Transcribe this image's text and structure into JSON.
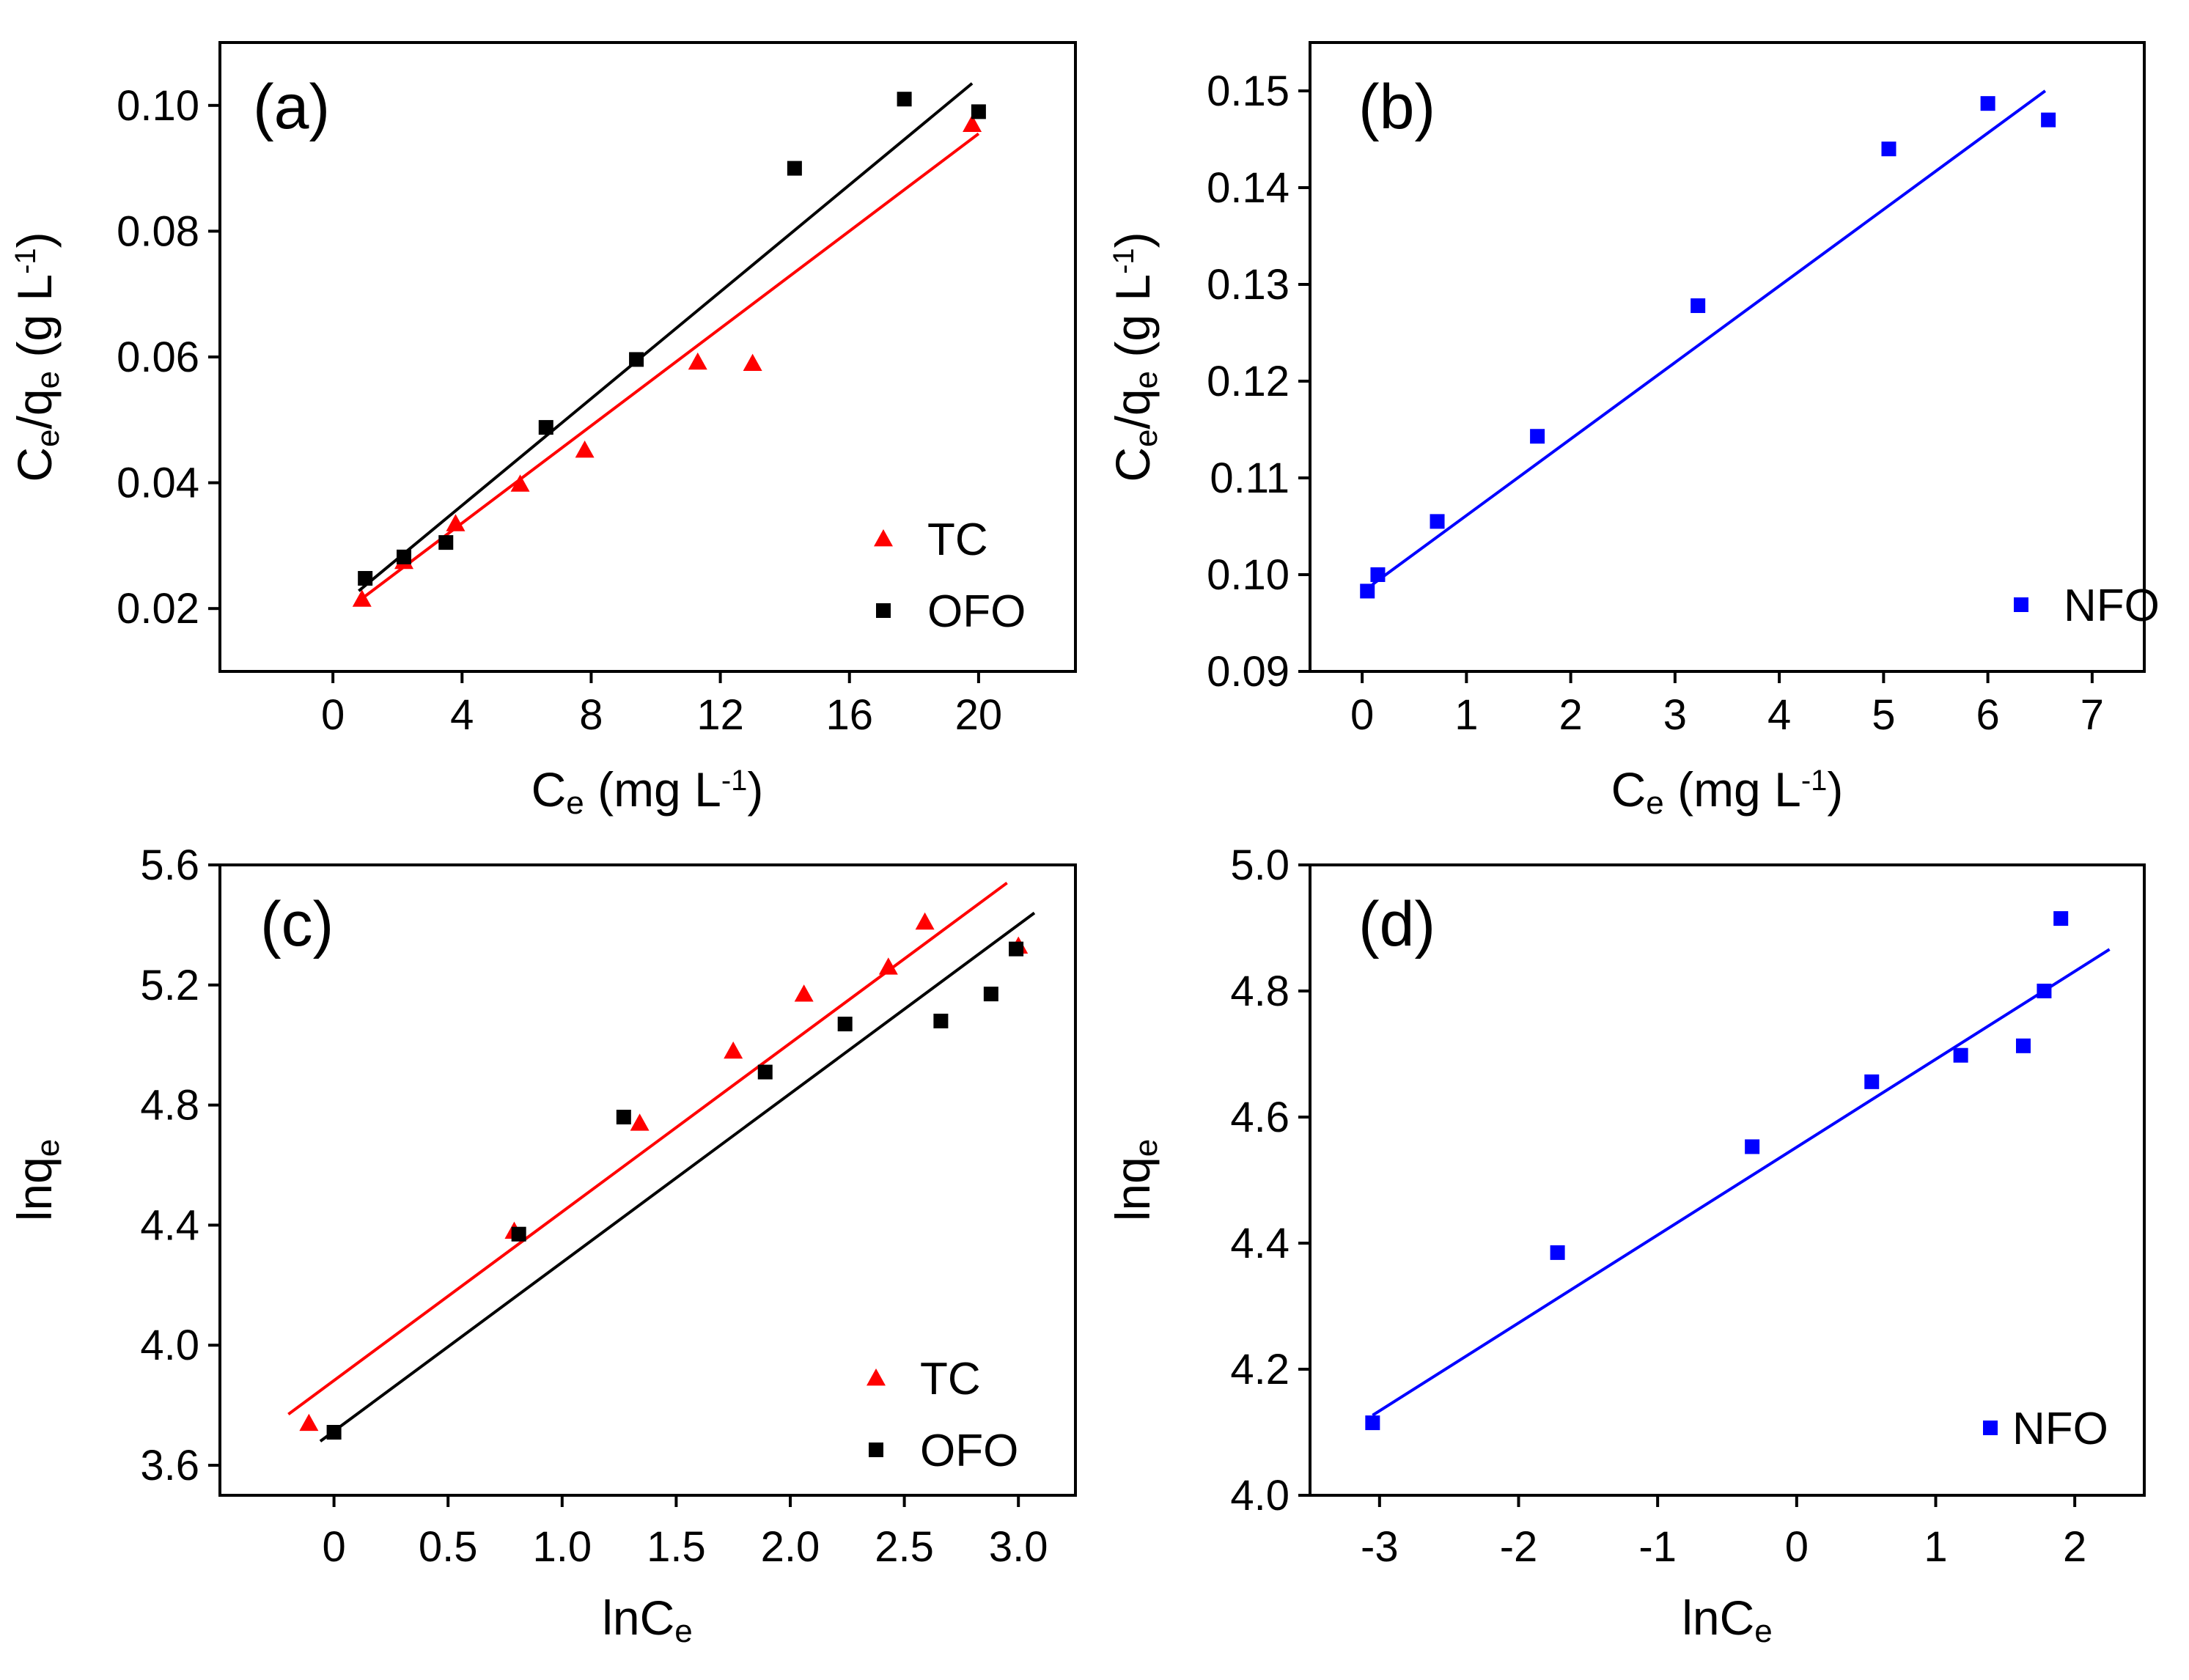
{
  "chart_data": [
    {
      "id": "a",
      "type": "scatter",
      "panel_label": "(a)",
      "title": "",
      "xlabel": {
        "main": "C",
        "sub": "e",
        "rest": " (mg L",
        "sup": "-1",
        "end": ")"
      },
      "ylabel": {
        "parts": [
          {
            "text": "C",
            "kind": "main"
          },
          {
            "text": "e",
            "kind": "sub"
          },
          {
            "text": "/q",
            "kind": "main"
          },
          {
            "text": "e",
            "kind": "sub"
          },
          {
            "text": " (g L",
            "kind": "main"
          },
          {
            "text": "-1",
            "kind": "sup"
          },
          {
            "text": ")",
            "kind": "main"
          }
        ]
      },
      "xlim": [
        -3.5,
        23
      ],
      "ylim": [
        0.01,
        0.11
      ],
      "xticks": [
        0,
        4,
        8,
        12,
        16,
        20
      ],
      "xtick_labels": [
        "0",
        "4",
        "8",
        "12",
        "16",
        "20"
      ],
      "yticks": [
        0.02,
        0.04,
        0.06,
        0.08,
        0.1
      ],
      "ytick_labels": [
        "0.02",
        "0.04",
        "0.06",
        "0.08",
        "0.10"
      ],
      "legend_position": "bottom-right",
      "series": [
        {
          "name": "TC",
          "marker": "triangle",
          "color": "#ff0000",
          "x": [
            0.9,
            2.2,
            3.8,
            5.8,
            7.8,
            11.3,
            13.0,
            19.8
          ],
          "y": [
            0.0215,
            0.0275,
            0.0335,
            0.0398,
            0.0452,
            0.0592,
            0.059,
            0.097
          ],
          "fit": {
            "x": [
              0.8,
              20.0
            ],
            "y": [
              0.0212,
              0.0955
            ]
          }
        },
        {
          "name": "OFO",
          "marker": "square",
          "color": "#000000",
          "x": [
            1.0,
            2.2,
            3.5,
            6.6,
            9.4,
            14.3,
            17.7,
            20.0
          ],
          "y": [
            0.0248,
            0.0282,
            0.0305,
            0.0488,
            0.0596,
            0.09,
            0.101,
            0.099
          ],
          "fit": {
            "x": [
              0.8,
              19.8
            ],
            "y": [
              0.0228,
              0.1035
            ]
          }
        }
      ]
    },
    {
      "id": "b",
      "type": "scatter",
      "panel_label": "(b)",
      "title": "",
      "xlabel": {
        "main": "C",
        "sub": "e",
        "rest": " (mg L",
        "sup": "-1",
        "end": ")"
      },
      "ylabel": {
        "parts": [
          {
            "text": "C",
            "kind": "main"
          },
          {
            "text": "e",
            "kind": "sub"
          },
          {
            "text": "/q",
            "kind": "main"
          },
          {
            "text": "e",
            "kind": "sub"
          },
          {
            "text": " (g L",
            "kind": "main"
          },
          {
            "text": "-1",
            "kind": "sup"
          },
          {
            "text": ")",
            "kind": "main"
          }
        ]
      },
      "xlim": [
        -0.5,
        7.5
      ],
      "ylim": [
        0.09,
        0.155
      ],
      "xticks": [
        0,
        1,
        2,
        3,
        4,
        5,
        6,
        7
      ],
      "xtick_labels": [
        "0",
        "1",
        "2",
        "3",
        "4",
        "5",
        "6",
        "7"
      ],
      "yticks": [
        0.09,
        0.1,
        0.11,
        0.12,
        0.13,
        0.14,
        0.15
      ],
      "ytick_labels": [
        "0.09",
        "0.10",
        "0.11",
        "0.12",
        "0.13",
        "0.14",
        "0.15"
      ],
      "legend_position": "bottom-right",
      "series": [
        {
          "name": "NFO",
          "marker": "square",
          "color": "#0000ff",
          "x": [
            0.05,
            0.15,
            0.72,
            1.68,
            3.22,
            5.05,
            6.0,
            6.58
          ],
          "y": [
            0.0983,
            0.1,
            0.1055,
            0.1143,
            0.1278,
            0.144,
            0.1487,
            0.147
          ],
          "fit": {
            "x": [
              0.1,
              6.55
            ],
            "y": [
              0.099,
              0.15
            ]
          }
        }
      ]
    },
    {
      "id": "c",
      "type": "scatter",
      "panel_label": "(c)",
      "title": "",
      "xlabel": {
        "main": "lnC",
        "sub": "e",
        "rest": "",
        "sup": "",
        "end": ""
      },
      "ylabel": {
        "parts": [
          {
            "text": "lnq",
            "kind": "main"
          },
          {
            "text": "e",
            "kind": "sub"
          }
        ]
      },
      "xlim": [
        -0.5,
        3.25
      ],
      "ylim": [
        3.5,
        5.6
      ],
      "xticks": [
        0,
        0.5,
        1.0,
        1.5,
        2.0,
        2.5,
        3.0
      ],
      "xtick_labels": [
        "0",
        "0.5",
        "1.0",
        "1.5",
        "2.0",
        "2.5",
        "3.0"
      ],
      "yticks": [
        3.6,
        4.0,
        4.4,
        4.8,
        5.2,
        5.6
      ],
      "ytick_labels": [
        "3.6",
        "4.0",
        "4.4",
        "4.8",
        "5.2",
        "5.6"
      ],
      "legend_position": "bottom-right",
      "series": [
        {
          "name": "TC",
          "marker": "triangle",
          "color": "#ff0000",
          "x": [
            -0.11,
            0.79,
            1.34,
            1.75,
            2.06,
            2.43,
            2.59,
            3.0
          ],
          "y": [
            3.74,
            4.38,
            4.74,
            4.98,
            5.17,
            5.26,
            5.41,
            5.33
          ],
          "fit": {
            "x": [
              -0.2,
              2.95
            ],
            "y": [
              3.77,
              5.54
            ]
          }
        },
        {
          "name": "OFO",
          "marker": "square",
          "color": "#000000",
          "x": [
            0.0,
            0.81,
            1.27,
            1.89,
            2.24,
            2.66,
            2.88,
            2.99
          ],
          "y": [
            3.71,
            4.37,
            4.76,
            4.91,
            5.07,
            5.08,
            5.17,
            5.32
          ],
          "fit": {
            "x": [
              -0.06,
              3.07
            ],
            "y": [
              3.68,
              5.44
            ]
          }
        }
      ]
    },
    {
      "id": "d",
      "type": "scatter",
      "panel_label": "(d)",
      "title": "",
      "xlabel": {
        "main": "lnC",
        "sub": "e",
        "rest": "",
        "sup": "",
        "end": ""
      },
      "ylabel": {
        "parts": [
          {
            "text": "lnq",
            "kind": "main"
          },
          {
            "text": "e",
            "kind": "sub"
          }
        ]
      },
      "xlim": [
        -3.5,
        2.5
      ],
      "ylim": [
        4.0,
        5.0
      ],
      "xticks": [
        -3,
        -2,
        -1,
        0,
        1,
        2
      ],
      "xtick_labels": [
        "-3",
        "-2",
        "-1",
        "0",
        "1",
        "2"
      ],
      "yticks": [
        4.0,
        4.2,
        4.4,
        4.6,
        4.8,
        5.0
      ],
      "ytick_labels": [
        "4.0",
        "4.2",
        "4.4",
        "4.6",
        "4.8",
        "5.0"
      ],
      "legend_position": "bottom-right",
      "series": [
        {
          "name": "NFO",
          "marker": "square",
          "color": "#0000ff",
          "x": [
            -3.05,
            -1.72,
            -0.32,
            0.54,
            1.18,
            1.63,
            1.78,
            1.9
          ],
          "y": [
            4.115,
            4.385,
            4.553,
            4.656,
            4.698,
            4.713,
            4.8,
            4.915
          ],
          "fit": {
            "x": [
              -3.05,
              2.25
            ],
            "y": [
              4.127,
              4.866
            ]
          }
        }
      ]
    }
  ]
}
